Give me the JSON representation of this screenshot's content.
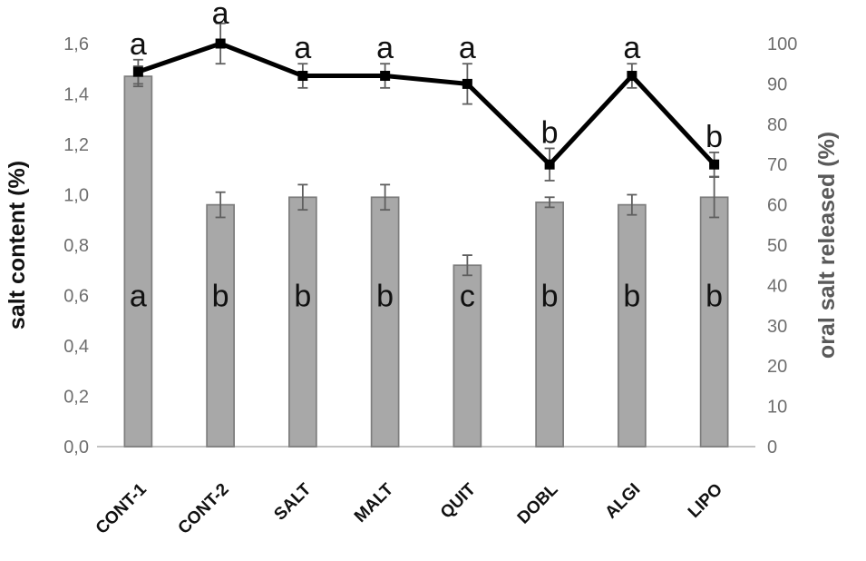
{
  "chart_data": {
    "type": "bar+line",
    "title": "",
    "categories": [
      "CONT-1",
      "CONT-2",
      "SALT",
      "MALT",
      "QUIT",
      "DOBL",
      "ALGI",
      "LIPO"
    ],
    "series": [
      {
        "name": "salt content",
        "type": "bar",
        "axis": "left",
        "values": [
          1.47,
          0.96,
          0.99,
          0.99,
          0.72,
          0.97,
          0.96,
          0.99
        ],
        "errors": [
          0.04,
          0.05,
          0.05,
          0.05,
          0.04,
          0.02,
          0.04,
          0.08
        ],
        "letters": [
          "a",
          "b",
          "b",
          "b",
          "c",
          "b",
          "b",
          "b"
        ]
      },
      {
        "name": "oral salt released",
        "type": "line",
        "axis": "right",
        "values": [
          93,
          100,
          92,
          92,
          90,
          70,
          92,
          70
        ],
        "errors": [
          3,
          5,
          3,
          3,
          5,
          4,
          3,
          3
        ],
        "letters": [
          "a",
          "a",
          "a",
          "a",
          "a",
          "b",
          "a",
          "b"
        ]
      }
    ],
    "left_axis": {
      "label": "salt content (%)",
      "min": 0,
      "max": 1.6,
      "tick_labels": [
        "0,0",
        "0,2",
        "0,4",
        "0,6",
        "0,8",
        "1,0",
        "1,2",
        "1,4",
        "1,6"
      ]
    },
    "right_axis": {
      "label": "oral salt released (%)",
      "min": 0,
      "max": 100,
      "tick_labels": [
        "0",
        "10",
        "20",
        "30",
        "40",
        "50",
        "60",
        "70",
        "80",
        "90",
        "100"
      ]
    },
    "grid": false,
    "legend": "none"
  },
  "colors": {
    "bar_fill": "#a8a8a8",
    "bar_stroke": "#7d7d7d",
    "line": "#000000",
    "marker": "#000000",
    "error": "#5f5f5f",
    "tick_text": "#6e6e6e",
    "left_title": "#111111",
    "right_title": "#595959",
    "axis_line": "#c2c2c2",
    "letter": "#111111",
    "x_label": "#111111"
  }
}
